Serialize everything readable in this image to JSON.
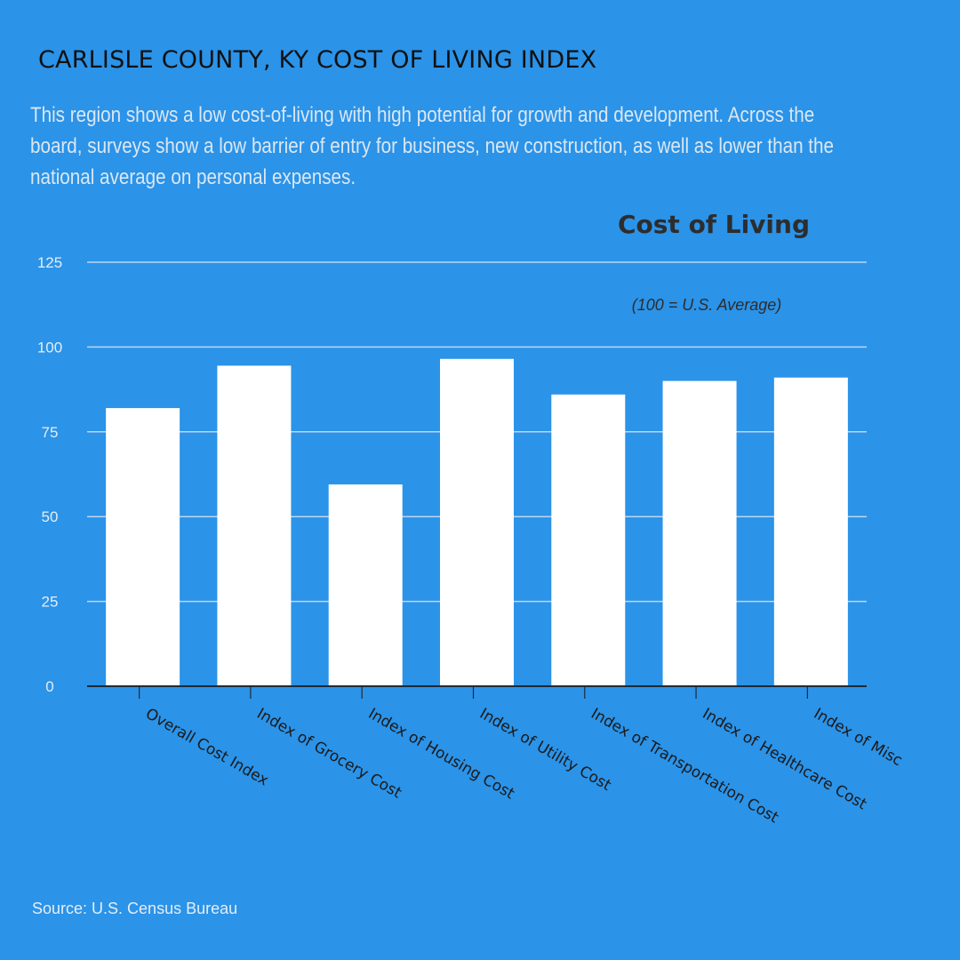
{
  "header": {
    "title": "CARLISLE COUNTY, KY COST OF LIVING INDEX",
    "description": "This region shows a low cost-of-living with high potential for growth and development. Across the board, surveys show a low barrier of entry for business, new construction, as well as lower than the national average on personal expenses."
  },
  "footer": {
    "source": "Source: U.S. Census Bureau"
  },
  "colors": {
    "background": "#2b93e8",
    "bar": "#ffffff",
    "gridline": "#bcd6f0",
    "axis": "#1f2a36"
  },
  "chart_data": {
    "type": "bar",
    "title": "Cost of Living",
    "subtitle": "(100 = U.S. Average)",
    "categories": [
      "Overall Cost Index",
      "Index of Grocery Cost",
      "Index of Housing Cost",
      "Index of Utility Cost",
      "Index of Transportation Cost",
      "Index of Healthcare Cost",
      "Index of Misc"
    ],
    "values": [
      82,
      94.5,
      59.5,
      96.5,
      86,
      90,
      91
    ],
    "yticks": [
      0,
      25,
      50,
      75,
      100,
      125
    ],
    "ylim": [
      0,
      125
    ],
    "grid": true,
    "legend": "none"
  }
}
